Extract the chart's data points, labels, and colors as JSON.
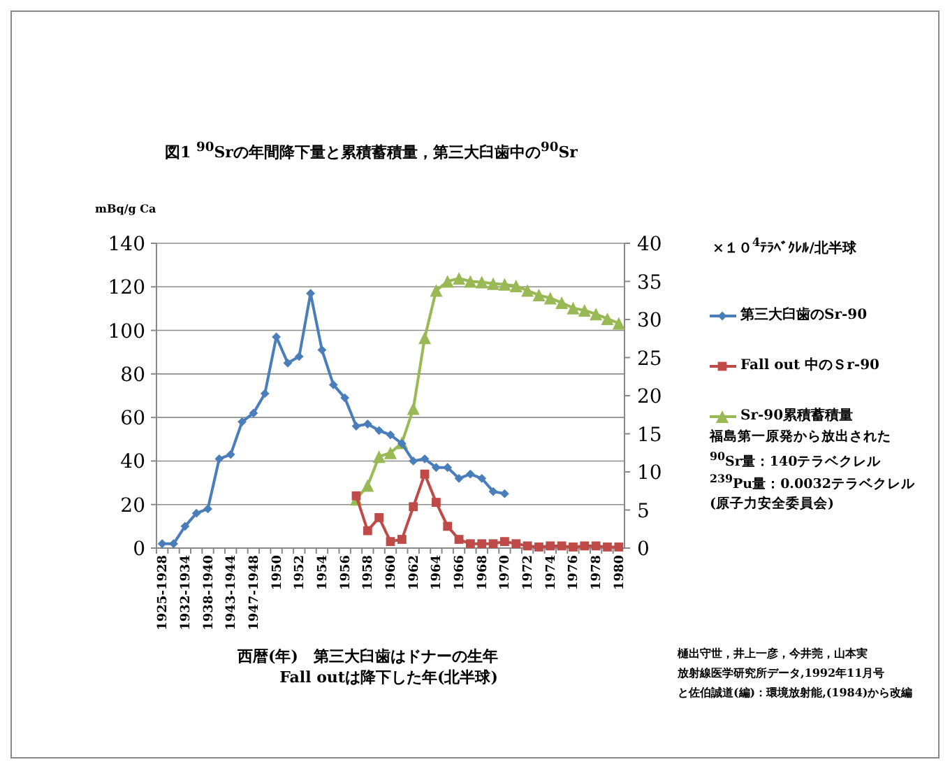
{
  "chart_data": {
    "type": "line",
    "title": "図1 $^{90}$Srの年間降下量と累積蓄積量，第三大臼歯中の$^{90}$Sr",
    "ylabel": "mBq/g Ca",
    "y2label": "×１０$^{4}$ﾃﾗﾍﾞｸﾚﾙ/北半球",
    "xlabel": "西暦(年)　第三大臼歯はドナーの生年\nFall outは降下した年(北半球)",
    "categories": [
      "1925-1928",
      null,
      "1932-1934",
      null,
      "1938-1940",
      null,
      "1943-1944",
      null,
      "1947-1948",
      null,
      "1950",
      null,
      "1952",
      null,
      "1954",
      null,
      "1956",
      null,
      "1958",
      null,
      "1960",
      null,
      "1962",
      null,
      "1964",
      null,
      "1966",
      null,
      "1968",
      null,
      "1970",
      null,
      "1972",
      null,
      "1974",
      null,
      "1976",
      null,
      "1978",
      null,
      "1980"
    ],
    "series": [
      {
        "name": "第三大臼歯のSr-90",
        "color": "#4a7ebb",
        "marker": "diamond",
        "values": [
          2,
          2,
          10,
          16,
          18,
          41,
          43,
          58,
          62,
          71,
          97,
          85,
          88,
          117,
          91,
          75,
          69,
          56,
          57,
          54,
          52,
          48,
          40,
          41,
          37,
          37,
          32,
          34,
          32,
          26,
          25,
          null,
          null,
          null,
          null,
          null,
          null,
          null,
          null,
          null,
          null
        ]
      },
      {
        "name": "Fall out 中のＳr-90",
        "color": "#be4b48",
        "marker": "square",
        "values": [
          null,
          null,
          null,
          null,
          null,
          null,
          null,
          null,
          null,
          null,
          null,
          null,
          null,
          null,
          null,
          null,
          null,
          24,
          8,
          14,
          3,
          4,
          19,
          34,
          21,
          10,
          4,
          2,
          2,
          2,
          3,
          2,
          1,
          0.5,
          1,
          1,
          0.5,
          1,
          1,
          0.5,
          0.5
        ]
      },
      {
        "name": "Sr-90累積蓄積量",
        "color": "#98b954",
        "marker": "triangle",
        "axis": "y2",
        "values": [
          null,
          null,
          null,
          null,
          null,
          null,
          null,
          null,
          null,
          null,
          null,
          null,
          null,
          null,
          null,
          null,
          null,
          6.4,
          8.2,
          12,
          12.5,
          13.8,
          18.3,
          27.6,
          33.8,
          35,
          35.4,
          35,
          34.9,
          34.7,
          34.6,
          34.4,
          33.8,
          33.2,
          32.8,
          32.2,
          31.5,
          31.2,
          30.7,
          30.1,
          29.5
        ]
      }
    ],
    "ylim": [
      0,
      140
    ],
    "yticks": [
      0,
      20,
      40,
      60,
      80,
      100,
      120,
      140
    ],
    "y2lim": [
      0,
      40
    ],
    "y2ticks": [
      0,
      5,
      10,
      15,
      20,
      25,
      30,
      35,
      40
    ],
    "grid": "y",
    "legend": "right",
    "annotations": [
      "福島第一原発から放出された",
      "$^{90}$Sr量：140テラベクレル",
      "$^{239}$Pu量：0.0032テラベクレル",
      "(原子力安全委員会)",
      "樋出守世，井上一彦，今井莞，山本実",
      "放射線医学研究所データ,1992年11月号",
      "と佐伯誠道(編)：環境放射能,(1984)から改編"
    ]
  }
}
